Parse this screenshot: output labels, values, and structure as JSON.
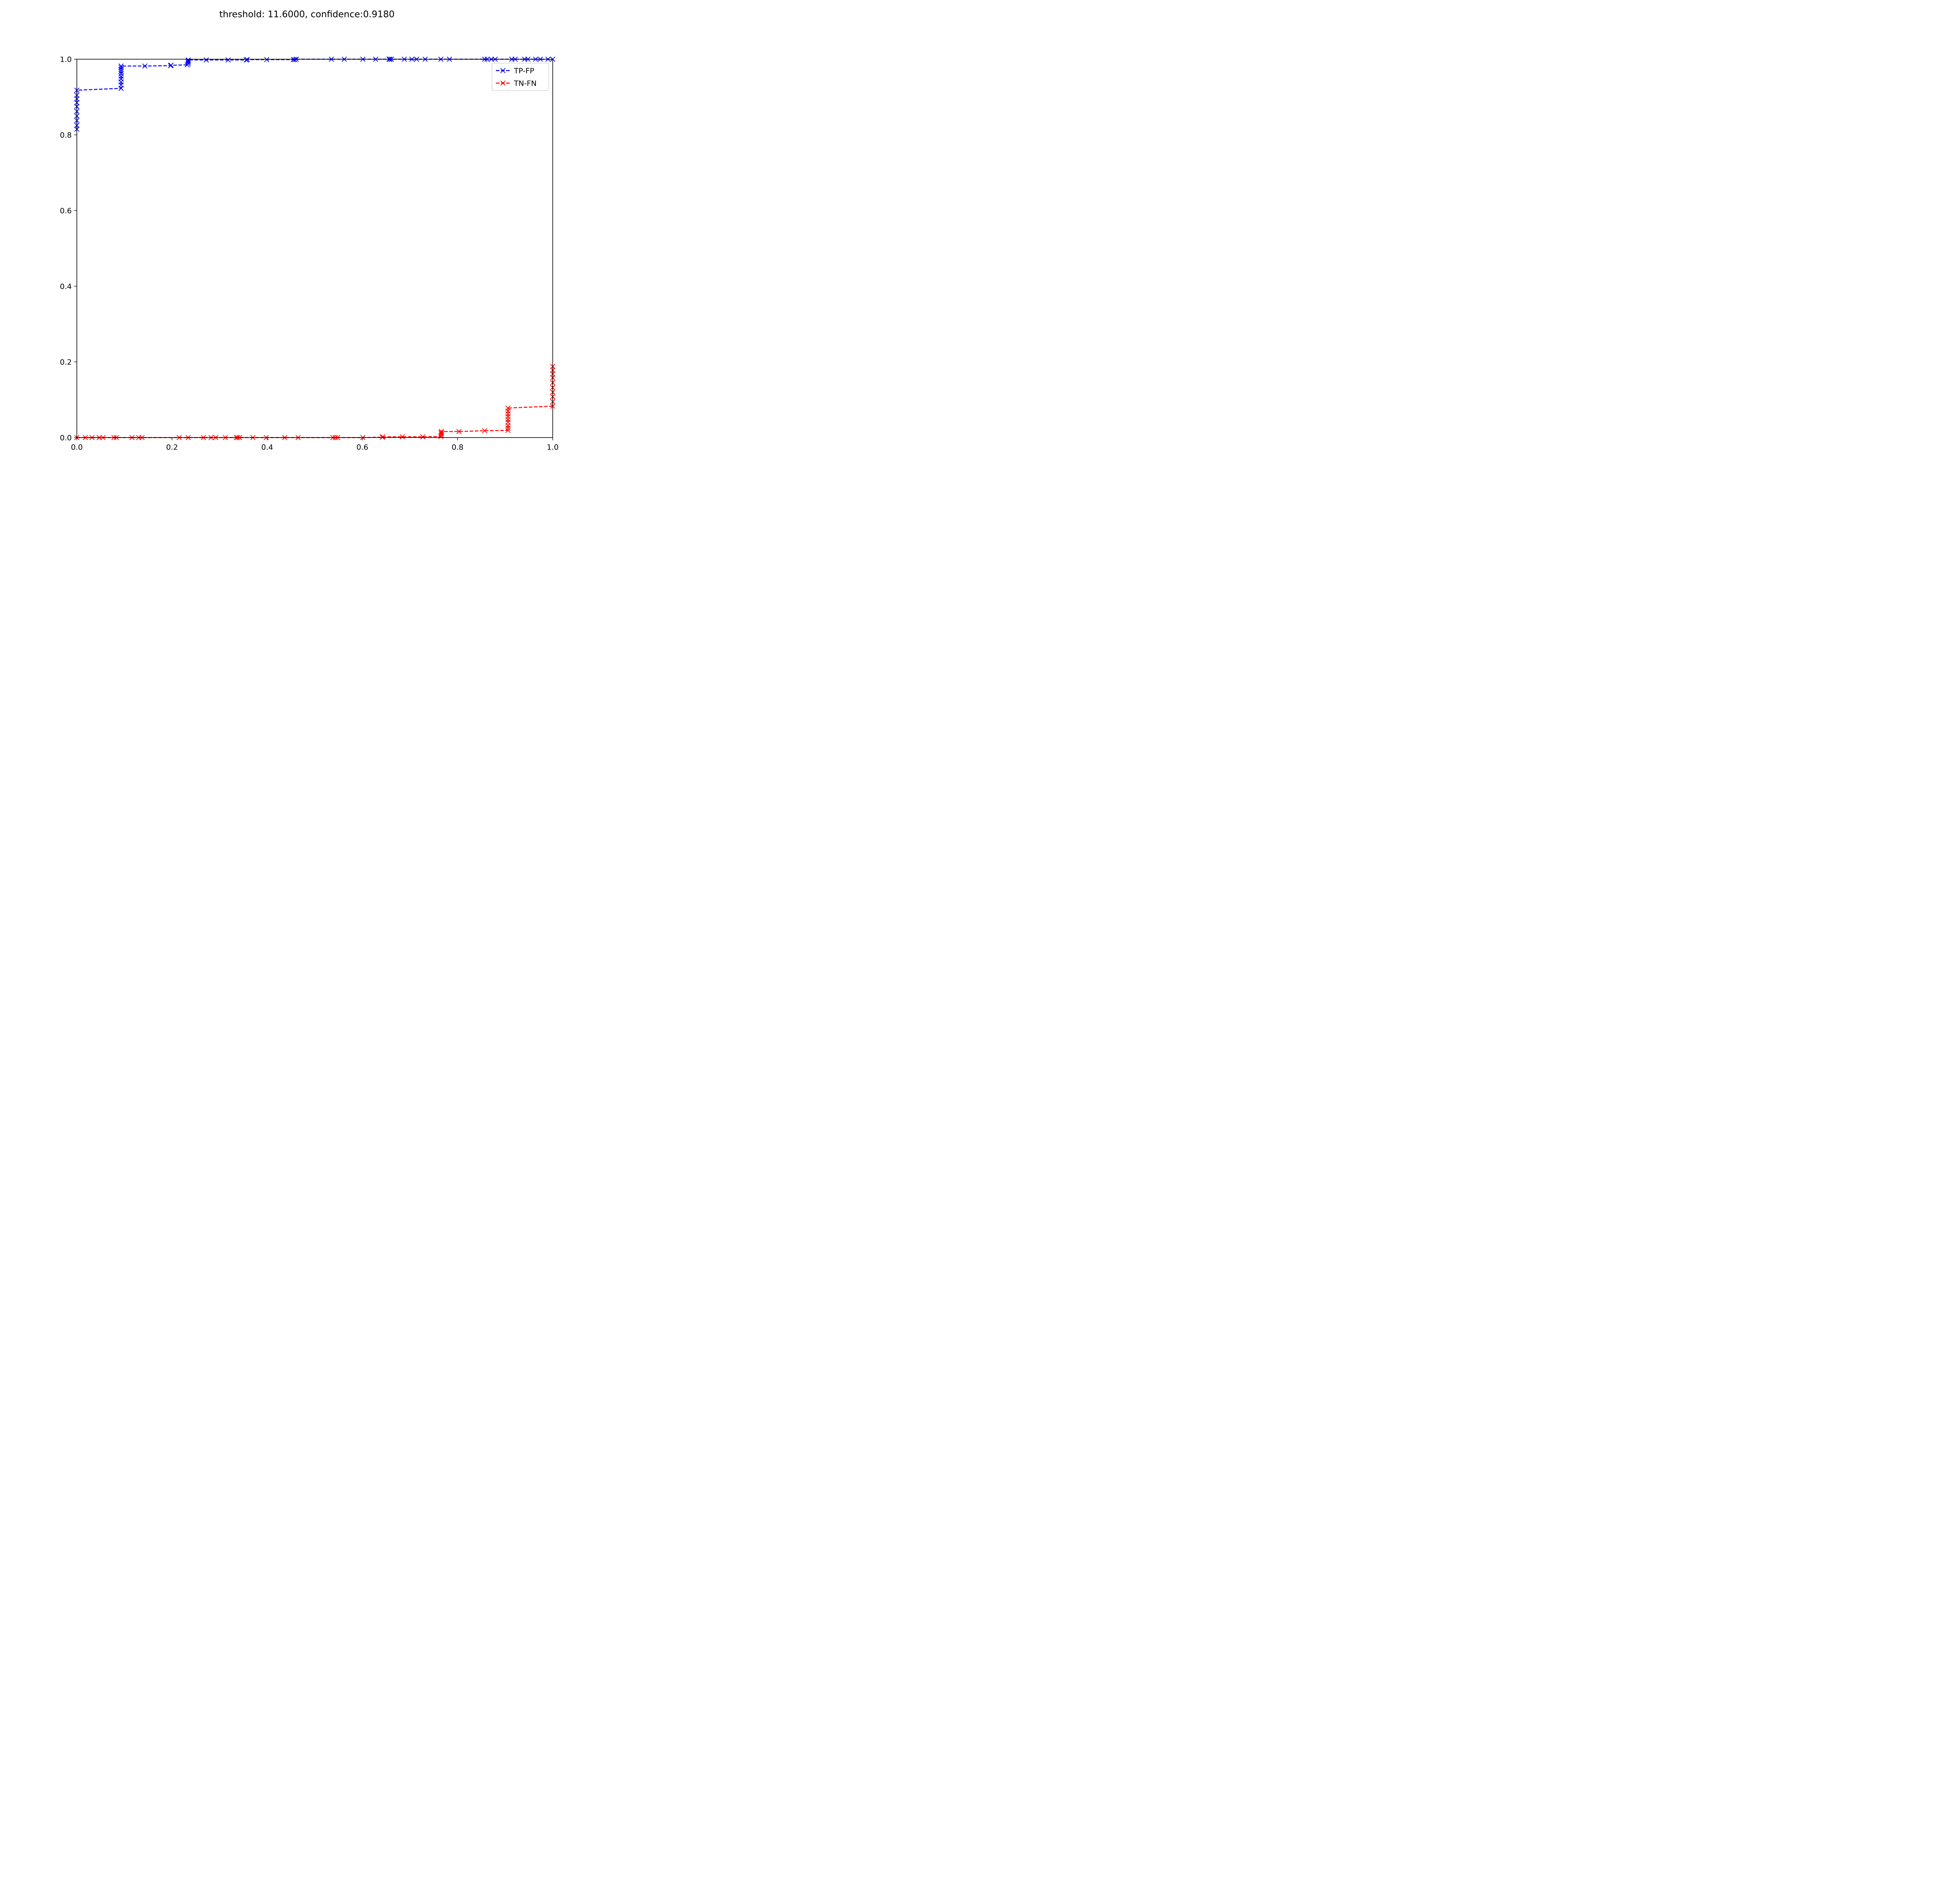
{
  "chart_data": {
    "type": "line",
    "title": "threshold: 11.6000, confidence:0.9180",
    "xlabel": "",
    "ylabel": "",
    "xlim": [
      0.0,
      1.0
    ],
    "ylim": [
      0.0,
      1.0
    ],
    "x_ticks": [
      "0.0",
      "0.2",
      "0.4",
      "0.6",
      "0.8",
      "1.0"
    ],
    "y_ticks": [
      "0.0",
      "0.2",
      "0.4",
      "0.6",
      "0.8",
      "1.0"
    ],
    "grid": false,
    "legend_position": "top-right",
    "series": [
      {
        "name": "TP-FP",
        "color": "#0000ff",
        "marker": "x",
        "line_style": "dashed",
        "x": [
          0.0,
          0.0,
          0.0,
          0.0,
          0.0,
          0.0,
          0.0,
          0.0,
          0.0,
          0.0,
          0.093,
          0.093,
          0.093,
          0.093,
          0.093,
          0.093,
          0.093,
          0.093,
          0.093,
          0.093,
          0.143,
          0.197,
          0.198,
          0.232,
          0.234,
          0.234,
          0.234,
          0.234,
          0.272,
          0.318,
          0.356,
          0.358,
          0.399,
          0.455,
          0.458,
          0.461,
          0.535,
          0.562,
          0.601,
          0.628,
          0.656,
          0.658,
          0.661,
          0.688,
          0.704,
          0.714,
          0.732,
          0.765,
          0.783,
          0.857,
          0.862,
          0.871,
          0.879,
          0.914,
          0.921,
          0.941,
          0.948,
          0.964,
          0.974,
          0.99,
          1.0
        ],
        "y": [
          0.815,
          0.825,
          0.838,
          0.85,
          0.862,
          0.875,
          0.885,
          0.895,
          0.905,
          0.918,
          0.923,
          0.932,
          0.94,
          0.948,
          0.955,
          0.962,
          0.968,
          0.973,
          0.978,
          0.982,
          0.982,
          0.983,
          0.984,
          0.985,
          0.988,
          0.992,
          0.995,
          0.998,
          0.998,
          0.998,
          0.998,
          0.999,
          0.999,
          0.999,
          0.999,
          1.0,
          1.0,
          1.0,
          1.0,
          1.0,
          1.0,
          1.0,
          1.0,
          1.0,
          1.0,
          1.0,
          1.0,
          1.0,
          1.0,
          1.0,
          1.0,
          1.0,
          1.0,
          1.0,
          1.0,
          1.0,
          1.0,
          1.0,
          1.0,
          1.0,
          1.0
        ]
      },
      {
        "name": "TN-FN",
        "color": "#ff0000",
        "marker": "x",
        "line_style": "dashed",
        "x": [
          0.0,
          0.018,
          0.032,
          0.047,
          0.055,
          0.078,
          0.083,
          0.116,
          0.13,
          0.137,
          0.215,
          0.234,
          0.266,
          0.282,
          0.292,
          0.312,
          0.335,
          0.338,
          0.342,
          0.37,
          0.398,
          0.437,
          0.465,
          0.538,
          0.543,
          0.548,
          0.601,
          0.642,
          0.643,
          0.684,
          0.727,
          0.765,
          0.766,
          0.766,
          0.766,
          0.766,
          0.803,
          0.857,
          0.906,
          0.906,
          0.906,
          0.906,
          0.906,
          0.906,
          0.906,
          0.906,
          0.906,
          1.0,
          1.0,
          1.0,
          1.0,
          1.0,
          1.0,
          1.0,
          1.0,
          1.0,
          1.0
        ],
        "y": [
          0.0,
          0.0,
          0.0,
          0.0,
          0.0,
          0.0,
          0.0,
          0.0,
          0.0,
          0.0,
          0.0,
          0.0,
          0.0,
          0.0,
          0.0,
          0.0,
          0.0,
          0.0,
          0.0,
          0.0,
          0.0,
          0.0,
          0.0,
          0.0,
          0.0,
          0.0,
          0.0,
          0.001,
          0.002,
          0.002,
          0.002,
          0.003,
          0.006,
          0.01,
          0.013,
          0.016,
          0.016,
          0.018,
          0.019,
          0.025,
          0.032,
          0.04,
          0.048,
          0.055,
          0.063,
          0.07,
          0.078,
          0.083,
          0.095,
          0.108,
          0.12,
          0.132,
          0.145,
          0.158,
          0.168,
          0.178,
          0.188
        ]
      }
    ]
  }
}
